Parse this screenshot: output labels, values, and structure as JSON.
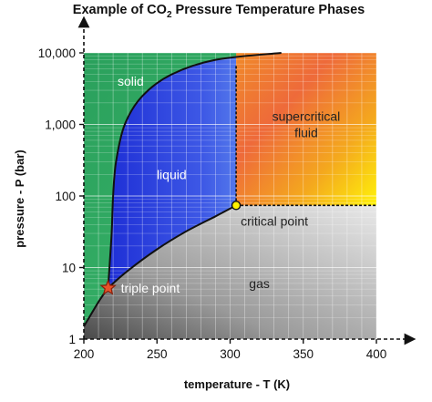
{
  "chart_data": {
    "type": "area",
    "title": {
      "prefix": "Example of CO",
      "subscript": "2",
      "suffix": " Pressure Temperature Phases"
    },
    "xlabel": "temperature - T (K)",
    "ylabel": "pressure - P (bar)",
    "x_ticks": [
      "200",
      "250",
      "300",
      "350",
      "400"
    ],
    "y_ticks": [
      "1",
      "10",
      "100",
      "1,000",
      "10,000"
    ],
    "xlim": [
      200,
      400
    ],
    "ylim": [
      1,
      10000
    ],
    "y_scale": "log",
    "grid": true,
    "regions": [
      {
        "name": "solid",
        "color": "#2fa661"
      },
      {
        "name": "liquid",
        "color": "#2f40e0"
      },
      {
        "name": "supercritical\nfluid",
        "color": "#f39a26"
      },
      {
        "name": "gas",
        "color": "#a7a7a7"
      }
    ],
    "triple_point": {
      "label": "triple point",
      "T": 216.6,
      "P": 5.2
    },
    "critical_point": {
      "label": "critical point",
      "T": 304.1,
      "P": 73.8
    },
    "sublimation_curve": [
      [
        200,
        1.5
      ],
      [
        210,
        3.3
      ],
      [
        216.6,
        5.2
      ]
    ],
    "melting_curve": [
      [
        216.6,
        5.2
      ],
      [
        217.5,
        10
      ],
      [
        219,
        30
      ],
      [
        220,
        100
      ],
      [
        222,
        300
      ],
      [
        228,
        1000
      ],
      [
        240,
        2500
      ],
      [
        260,
        5000
      ],
      [
        290,
        8000
      ],
      [
        335,
        10000
      ]
    ],
    "boiling_curve": [
      [
        216.6,
        5.2
      ],
      [
        230,
        9
      ],
      [
        250,
        18
      ],
      [
        270,
        32
      ],
      [
        290,
        52
      ],
      [
        304.1,
        73.8
      ]
    ]
  }
}
